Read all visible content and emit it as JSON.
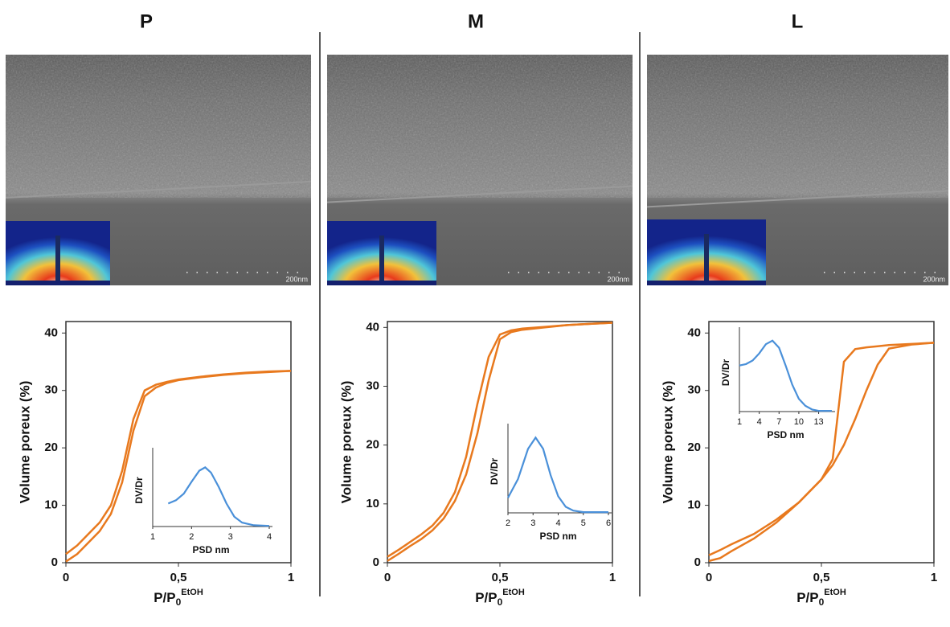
{
  "chart_data": [
    {
      "type": "line",
      "title": "P",
      "ylabel": "Volume poreux (%)",
      "xlabel": {
        "base": "P/P",
        "sub": "0",
        "sup": "EtOH"
      },
      "xlim": [
        0,
        1
      ],
      "xticks": [
        0,
        {
          "value": 0.5,
          "label": "0,5"
        },
        1
      ],
      "ylim": [
        0,
        42
      ],
      "yticks": [
        0,
        10,
        20,
        30,
        40
      ],
      "x": [
        0,
        0.05,
        0.1,
        0.15,
        0.2,
        0.25,
        0.3,
        0.35,
        0.4,
        0.45,
        0.5,
        0.6,
        0.7,
        0.8,
        0.9,
        1
      ],
      "series": [
        {
          "color": "#e8791e",
          "values": [
            0.2,
            1.5,
            3.5,
            5.5,
            8.5,
            14,
            23,
            29,
            30.5,
            31.3,
            31.8,
            32.3,
            32.7,
            33,
            33.2,
            33.4
          ]
        },
        {
          "color": "#e8791e",
          "values": [
            1.5,
            3,
            5,
            7,
            10,
            16,
            25,
            30,
            31,
            31.5,
            31.9,
            32.4,
            32.8,
            33.1,
            33.3,
            33.4
          ]
        }
      ],
      "inset": {
        "type": "line",
        "xlabel": "PSD nm",
        "ylabel": "DV/Dr",
        "color": "#4a90d9",
        "xlim": [
          1,
          4
        ],
        "xticks": [
          1,
          2,
          3,
          4
        ],
        "ylim": [
          0,
          1.1
        ],
        "x": [
          1.4,
          1.6,
          1.8,
          2,
          2.2,
          2.35,
          2.5,
          2.7,
          2.9,
          3.1,
          3.3,
          3.6,
          4
        ],
        "values": [
          0.35,
          0.4,
          0.5,
          0.68,
          0.85,
          0.9,
          0.82,
          0.6,
          0.35,
          0.15,
          0.06,
          0.02,
          0.01
        ]
      }
    },
    {
      "type": "line",
      "title": "M",
      "ylabel": "Volume poreux (%)",
      "xlabel": {
        "base": "P/P",
        "sub": "0",
        "sup": "EtOH"
      },
      "xlim": [
        0,
        1
      ],
      "xticks": [
        0,
        {
          "value": 0.5,
          "label": "0,5"
        },
        1
      ],
      "ylim": [
        0,
        41
      ],
      "yticks": [
        0,
        10,
        20,
        30,
        40
      ],
      "x": [
        0,
        0.05,
        0.1,
        0.15,
        0.2,
        0.25,
        0.3,
        0.35,
        0.4,
        0.45,
        0.5,
        0.55,
        0.6,
        0.7,
        0.8,
        0.9,
        1
      ],
      "series": [
        {
          "color": "#e8791e",
          "values": [
            0.3,
            1.5,
            2.8,
            4,
            5.5,
            7.5,
            10.5,
            15,
            22,
            31,
            38,
            39.2,
            39.6,
            40,
            40.4,
            40.6,
            40.8
          ]
        },
        {
          "color": "#e8791e",
          "values": [
            1,
            2.2,
            3.5,
            4.8,
            6.3,
            8.5,
            12,
            18,
            27,
            35,
            38.8,
            39.5,
            39.8,
            40.1,
            40.4,
            40.6,
            40.8
          ]
        }
      ],
      "inset": {
        "type": "line",
        "xlabel": "PSD nm",
        "ylabel": "DV/Dr",
        "color": "#4a90d9",
        "xlim": [
          2,
          6
        ],
        "xticks": [
          2,
          3,
          4,
          5,
          6
        ],
        "ylim": [
          0,
          1.1
        ],
        "x": [
          2,
          2.4,
          2.8,
          3.1,
          3.4,
          3.7,
          4,
          4.3,
          4.6,
          5,
          6
        ],
        "values": [
          0.2,
          0.45,
          0.85,
          1.0,
          0.85,
          0.5,
          0.22,
          0.08,
          0.03,
          0.01,
          0.01
        ]
      }
    },
    {
      "type": "line",
      "title": "L",
      "ylabel": "Volume poreux (%)",
      "xlabel": {
        "base": "P/P",
        "sub": "0",
        "sup": "EtOH"
      },
      "xlim": [
        0,
        1
      ],
      "xticks": [
        0,
        {
          "value": 0.5,
          "label": "0,5"
        },
        1
      ],
      "ylim": [
        0,
        42
      ],
      "yticks": [
        0,
        10,
        20,
        30,
        40
      ],
      "x": [
        0,
        0.05,
        0.1,
        0.2,
        0.3,
        0.4,
        0.5,
        0.55,
        0.6,
        0.65,
        0.7,
        0.75,
        0.8,
        0.9,
        1
      ],
      "series": [
        {
          "color": "#e8791e",
          "values": [
            0.3,
            0.8,
            2,
            4.2,
            7,
            10.5,
            14.5,
            17,
            20.5,
            25,
            30,
            34.5,
            37.3,
            38,
            38.3
          ]
        },
        {
          "color": "#e8791e",
          "values": [
            1.3,
            2.2,
            3.2,
            5,
            7.5,
            10.5,
            14.5,
            18,
            35,
            37.2,
            37.5,
            37.7,
            37.9,
            38.1,
            38.3
          ]
        }
      ],
      "inset": {
        "type": "line",
        "xlabel": "PSD nm",
        "ylabel": "DV/Dr",
        "color": "#4a90d9",
        "xlim": [
          1,
          15
        ],
        "xticks": [
          1,
          4,
          7,
          10,
          13
        ],
        "ylim": [
          0,
          1.1
        ],
        "x": [
          1,
          2,
          3,
          4,
          5,
          6,
          7,
          8,
          9,
          10,
          11,
          12,
          13,
          15
        ],
        "values": [
          0.65,
          0.67,
          0.72,
          0.82,
          0.95,
          1.0,
          0.9,
          0.65,
          0.38,
          0.18,
          0.08,
          0.03,
          0.01,
          0.01
        ]
      }
    }
  ],
  "images": [
    {
      "scale_label": "200nm"
    },
    {
      "scale_label": "200nm"
    },
    {
      "scale_label": "200nm"
    }
  ]
}
